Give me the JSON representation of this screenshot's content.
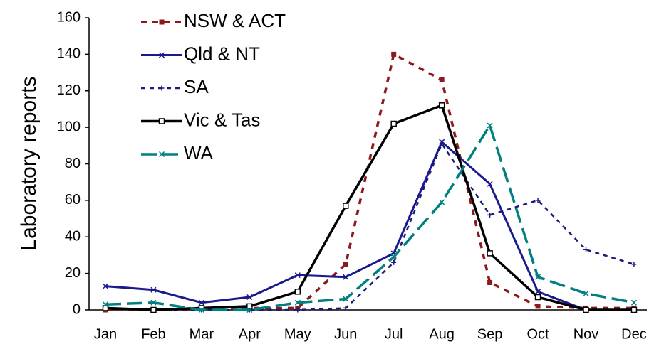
{
  "chart_data": {
    "type": "line",
    "y_label": "Laboratory reports",
    "categories": [
      "Jan",
      "Feb",
      "Mar",
      "Apr",
      "May",
      "Jun",
      "Jul",
      "Aug",
      "Sep",
      "Oct",
      "Nov",
      "Dec"
    ],
    "ylim": [
      0,
      160
    ],
    "yticks": [
      0,
      20,
      40,
      60,
      80,
      100,
      120,
      140,
      160
    ],
    "grid": false,
    "legend": "upper-left",
    "series": [
      {
        "name": "NSW & ACT",
        "color": "#8b1a1a",
        "dash": "short",
        "marker": "square",
        "values": [
          0,
          0,
          1,
          1,
          1,
          25,
          140,
          126,
          15,
          2,
          1,
          1
        ]
      },
      {
        "name": "Qld & NT",
        "color": "#1a1a8c",
        "dash": "solid",
        "marker": "x",
        "values": [
          13,
          11,
          4,
          7,
          19,
          18,
          31,
          92,
          69,
          10,
          0,
          0
        ]
      },
      {
        "name": "SA",
        "color": "#1a1a7a",
        "dash": "dotted",
        "marker": "plus",
        "values": [
          1,
          0,
          0,
          0,
          0,
          1,
          26,
          91,
          52,
          60,
          33,
          25
        ]
      },
      {
        "name": "Vic & Tas",
        "color": "#000000",
        "dash": "solid",
        "marker": "open-square",
        "values": [
          1,
          0,
          1,
          2,
          10,
          57,
          102,
          112,
          31,
          7,
          0,
          0
        ]
      },
      {
        "name": "WA",
        "color": "#008080",
        "dash": "long",
        "marker": "x",
        "values": [
          3,
          4,
          0,
          0,
          4,
          6,
          29,
          59,
          101,
          18,
          9,
          4
        ]
      }
    ]
  }
}
